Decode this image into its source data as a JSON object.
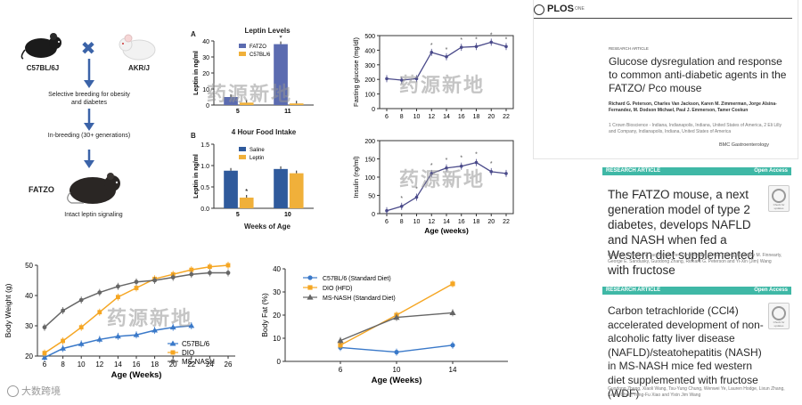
{
  "diagram": {
    "strain_left": "C57BL/6J",
    "strain_right": "AKR/J",
    "step1": "Selective breeding for obesity and diabetes",
    "step2": "In-breeding (30+ generations)",
    "result": "FATZO",
    "result_note": "Intact leptin signaling",
    "cross_symbol": "✖"
  },
  "leptin_chart": {
    "panel": "A",
    "title": "Leptin Levels",
    "ylabel": "Leptin in ng/ml",
    "chart_data": {
      "type": "bar",
      "categories": [
        "5",
        "11"
      ],
      "series": [
        {
          "name": "FATZO",
          "color": "#5b6bb0",
          "values": [
            5,
            38
          ]
        },
        {
          "name": "C57BL/6",
          "color": "#f0b03a",
          "values": [
            1.5,
            1
          ]
        }
      ],
      "ylim": [
        0,
        40
      ],
      "yticks": [
        "0",
        "10",
        "20",
        "30",
        "40"
      ],
      "annotation": "*"
    }
  },
  "food_chart": {
    "panel": "B",
    "title": "4 Hour Food Intake",
    "ylabel": "Leptin in ng/ml",
    "xlabel": "Weeks of Age",
    "chart_data": {
      "type": "bar",
      "categories": [
        "5",
        "10"
      ],
      "series": [
        {
          "name": "Saline",
          "color": "#2f5a9c",
          "values": [
            0.88,
            0.92
          ]
        },
        {
          "name": "Leptin",
          "color": "#f0b03a",
          "values": [
            0.25,
            0.82
          ]
        }
      ],
      "ylim": [
        0,
        1.5
      ],
      "yticks": [
        "0.0",
        "0.5",
        "1.0",
        "1.5"
      ],
      "annotation": "*"
    }
  },
  "glucose_chart": {
    "ylabel": "Fasting glucose (mg/dl)",
    "chart_data": {
      "type": "line",
      "x": [
        6,
        8,
        10,
        12,
        14,
        16,
        18,
        20,
        22
      ],
      "values": [
        205,
        195,
        205,
        385,
        355,
        420,
        425,
        455,
        425
      ],
      "ylim": [
        0,
        500
      ],
      "yticks": [
        "0",
        "100",
        "200",
        "300",
        "400",
        "500"
      ],
      "xticks": [
        "6",
        "8",
        "10",
        "12",
        "14",
        "16",
        "18",
        "20",
        "22"
      ],
      "color": "#4a4a8a"
    }
  },
  "insulin_chart": {
    "ylabel": "Insulin (ng/ml)",
    "xlabel": "Age (weeks)",
    "chart_data": {
      "type": "line",
      "x": [
        6,
        8,
        10,
        12,
        14,
        16,
        18,
        20,
        22
      ],
      "values": [
        8,
        20,
        45,
        110,
        125,
        130,
        140,
        115,
        110
      ],
      "ylim": [
        0,
        200
      ],
      "yticks": [
        "0",
        "50",
        "100",
        "150",
        "200"
      ],
      "xticks": [
        "6",
        "8",
        "10",
        "12",
        "14",
        "16",
        "18",
        "20",
        "22"
      ],
      "color": "#4a4a8a"
    }
  },
  "weight_chart": {
    "ylabel": "Body Weight (g)",
    "xlabel": "Age (Weeks)",
    "chart_data": {
      "type": "line",
      "x": [
        6,
        8,
        10,
        12,
        14,
        16,
        18,
        20,
        22,
        24,
        26
      ],
      "series": [
        {
          "name": "C57BL/6",
          "color": "#3a79c9",
          "marker": "triangle",
          "values": [
            19.5,
            22.5,
            24,
            25.5,
            26.5,
            27,
            28.5,
            29.5,
            30,
            null,
            null
          ]
        },
        {
          "name": "DIO",
          "color": "#f5a623",
          "marker": "square",
          "values": [
            21,
            25,
            29.5,
            34.5,
            39.5,
            42.5,
            45.5,
            47,
            48.5,
            49.5,
            50
          ]
        },
        {
          "name": "MS-NASH",
          "color": "#666666",
          "marker": "circle",
          "values": [
            29.5,
            35,
            38.5,
            41,
            43,
            44.5,
            45,
            46,
            47,
            47.5,
            47.5
          ]
        }
      ],
      "ylim": [
        20,
        50
      ],
      "yticks": [
        "20",
        "30",
        "40",
        "50"
      ],
      "xticks": [
        "6",
        "8",
        "10",
        "12",
        "14",
        "16",
        "18",
        "20",
        "22",
        "24",
        "26"
      ]
    }
  },
  "fat_chart": {
    "ylabel": "Body Fat (%)",
    "xlabel": "Age (Weeks)",
    "chart_data": {
      "type": "line",
      "x": [
        6,
        10,
        14
      ],
      "series": [
        {
          "name": "C57BL/6  (Standard Diet)",
          "color": "#3a79c9",
          "marker": "circle",
          "values": [
            6,
            4,
            7
          ]
        },
        {
          "name": "DIO (HFD)",
          "color": "#f5a623",
          "marker": "square",
          "values": [
            7,
            20,
            33.5
          ]
        },
        {
          "name": "MS-NASH (Standard Diet)",
          "color": "#666666",
          "marker": "triangle",
          "values": [
            9,
            19,
            21
          ]
        }
      ],
      "ylim": [
        0,
        40
      ],
      "yticks": [
        "0",
        "10",
        "20",
        "30",
        "40"
      ],
      "xticks": [
        "6",
        "10",
        "14"
      ]
    }
  },
  "papers": {
    "plos": {
      "logo": "PLOS",
      "journal": "ONE",
      "type": "RESEARCH ARTICLE",
      "title": "Glucose dysregulation and response to common anti-diabetic agents in the FATZO/ Pco mouse",
      "authors": "Richard G. Peterson, Charles Van Jackson, Karen M. Zimmerman, Jorge Alsina-Fernandez, M. Dodson Michael, Paul J. Emmerson, Tamer Coskun",
      "affil": "1 Crown Bioscience - Indiana, Indianapolis, Indiana, United States of America, 2 Eli Lilly and Company, Indianapolis, Indiana, United States of America"
    },
    "bmc_label": "BMC Gastroenterology",
    "second": {
      "type": "RESEARCH ARTICLE",
      "access": "Open Access",
      "title": "The FATZO mouse, a next generation model of type 2 diabetes, develops NAFLD and NASH when fed a Western diet supplemented with fructose",
      "authors": "Guo Sun, Charles V. Jackson, Karen Zimmerman, Li-Kun Zhang, Courtney M. Finnearty, George E. Sandusky, Guodong Zhang, Richard G. Peterson and Yi-Xin (Jim) Wang"
    },
    "third": {
      "type": "RESEARCH ARTICLE",
      "access": "Open Access",
      "title": "Carbon tetrachloride (CCl4) accelerated development of non-alcoholic fatty liver disease (NAFLD)/steatohepatitis (NASH) in MS-NASH mice fed western diet supplemented with fructose (WDF)",
      "authors": "Guodong Zhang, Xiaoli Wang, Tsu-Yung Chung, Wenwei Ye, Lauren Hodge, Lixun Zhang, Keefe Chng, Yong-Fu Xiao and Yixin Jim Wang"
    },
    "check_label": "Check for updates"
  },
  "watermark": "药源新地",
  "footer_logo": "大数跨境",
  "colors": {
    "accent_teal": "#3fb8a6",
    "series_blue": "#3a79c9",
    "series_orange": "#f5a623",
    "series_grey": "#666666"
  }
}
